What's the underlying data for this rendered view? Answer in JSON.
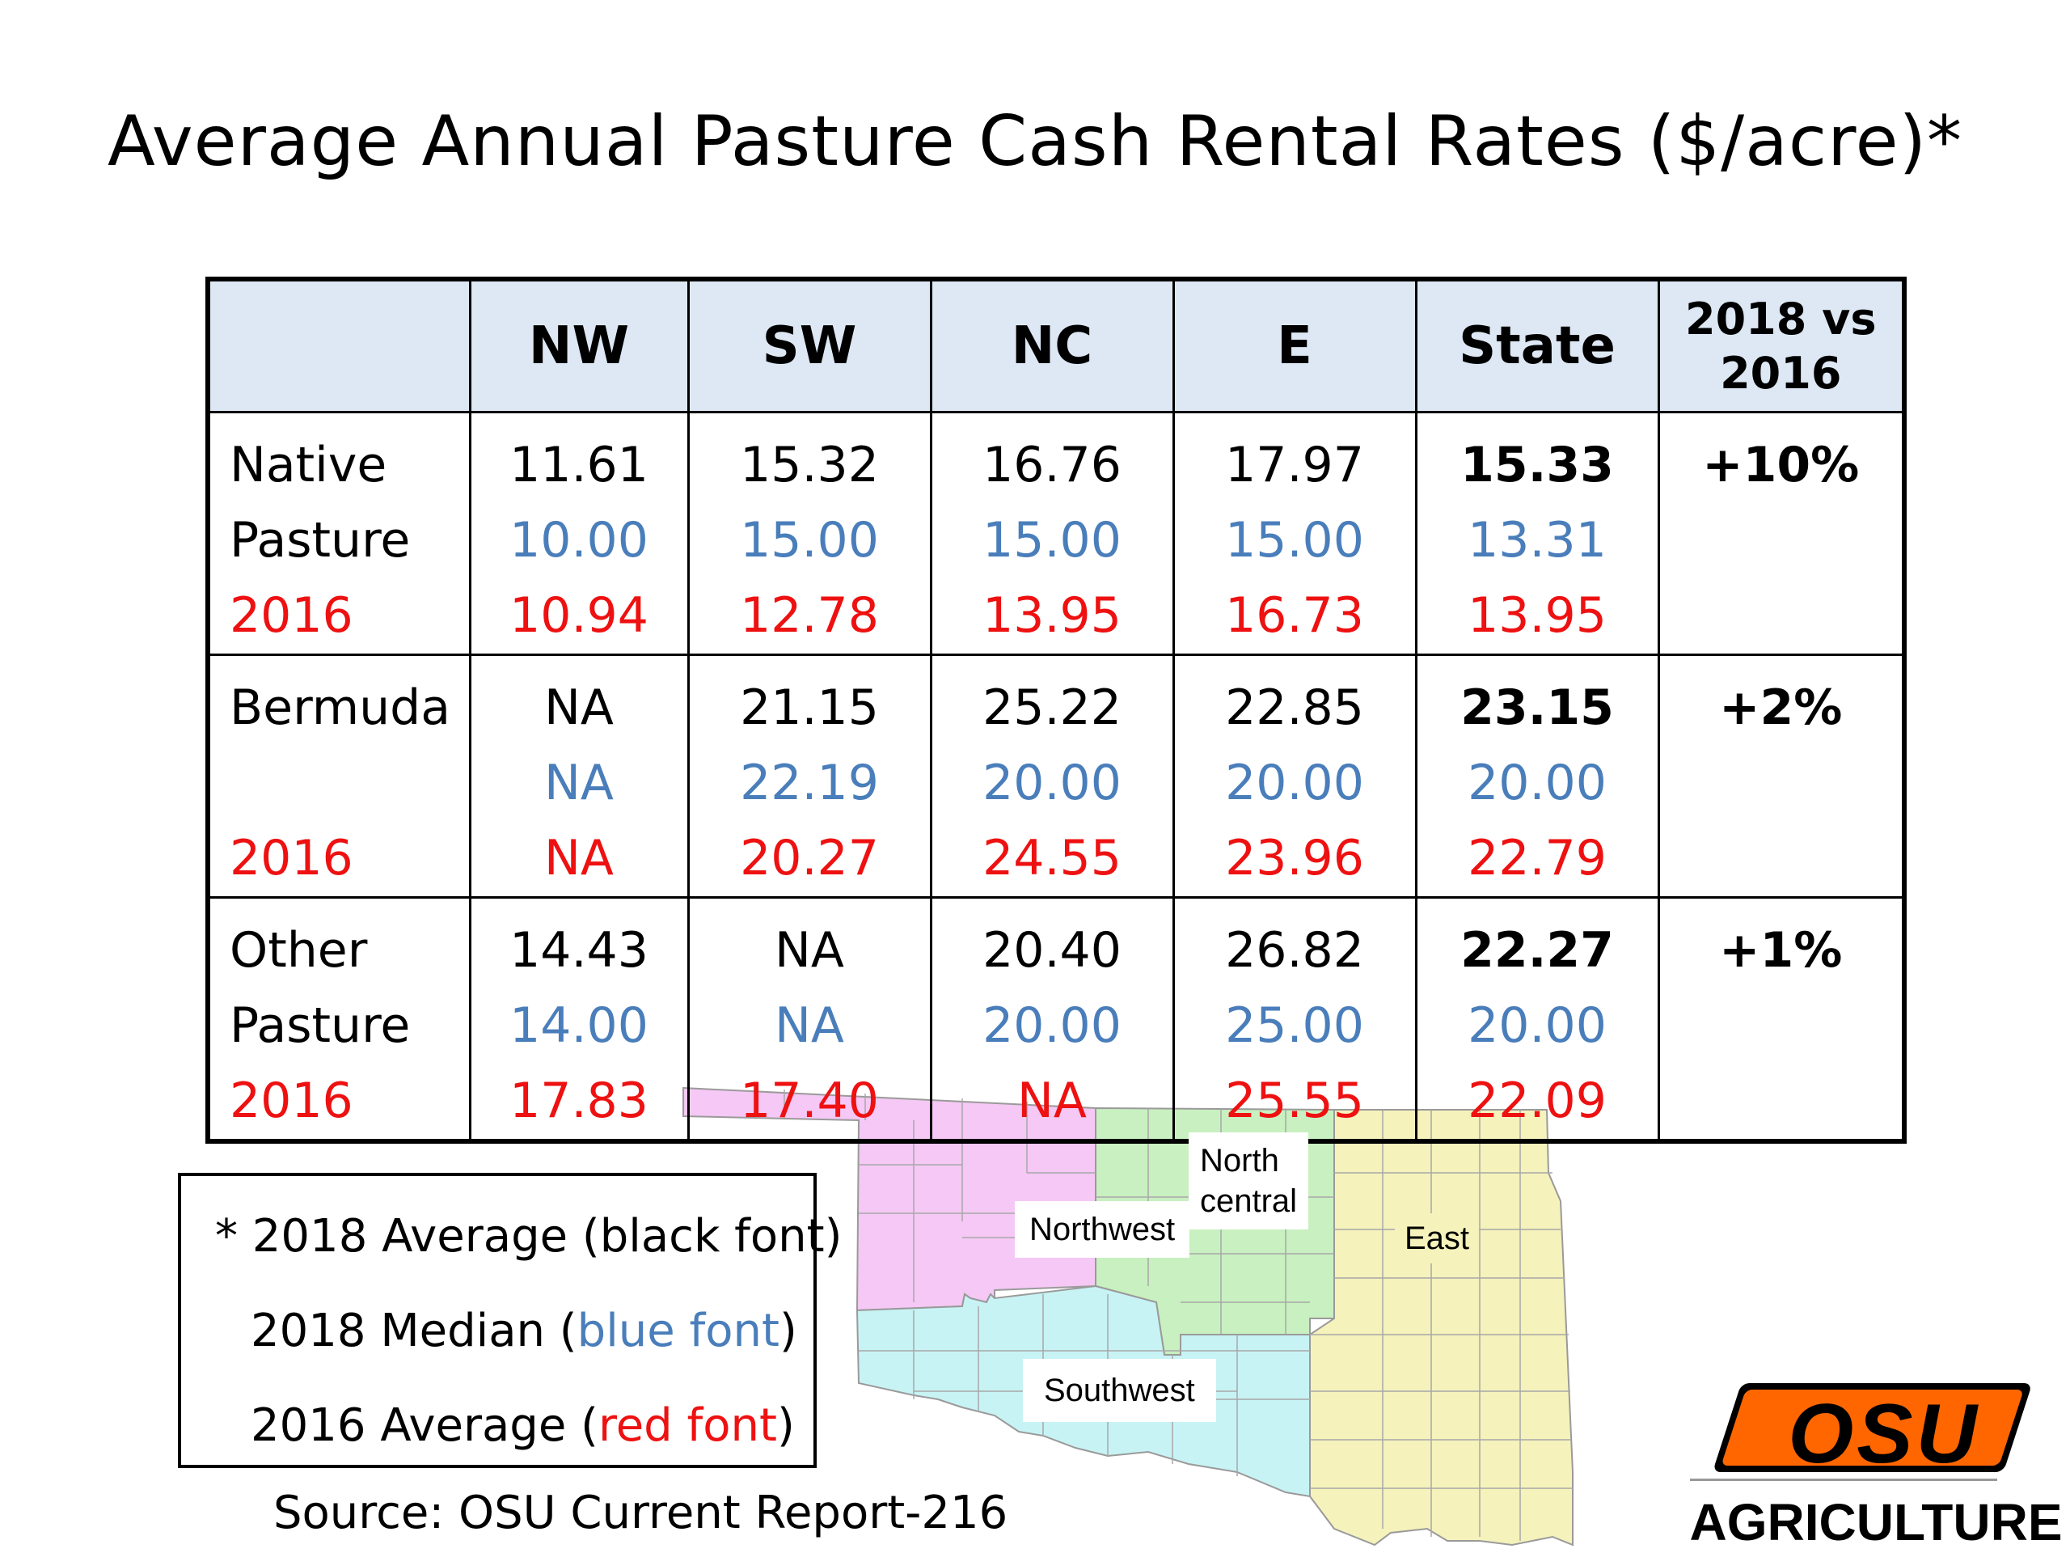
{
  "title": "Average Annual Pasture Cash Rental Rates ($/acre)*",
  "table": {
    "headers": [
      "",
      "NW",
      "SW",
      "NC",
      "E",
      "State",
      "2018 vs 2016"
    ],
    "rows": [
      {
        "label_lines": [
          "Native",
          "Pasture",
          "2016"
        ],
        "avg2018": [
          "11.61",
          "15.32",
          "16.76",
          "17.97",
          "15.33"
        ],
        "median2018": [
          "10.00",
          "15.00",
          "15.00",
          "15.00",
          "13.31"
        ],
        "avg2016": [
          "10.94",
          "12.78",
          "13.95",
          "16.73",
          "13.95"
        ],
        "change": "+10%"
      },
      {
        "label_lines": [
          "Bermuda",
          "",
          "2016"
        ],
        "avg2018": [
          "NA",
          "21.15",
          "25.22",
          "22.85",
          "23.15"
        ],
        "median2018": [
          "NA",
          "22.19",
          "20.00",
          "20.00",
          "20.00"
        ],
        "avg2016": [
          "NA",
          "20.27",
          "24.55",
          "23.96",
          "22.79"
        ],
        "change": "+2%"
      },
      {
        "label_lines": [
          "Other",
          "Pasture",
          "2016"
        ],
        "avg2018": [
          "14.43",
          "NA",
          "20.40",
          "26.82",
          "22.27"
        ],
        "median2018": [
          "14.00",
          "NA",
          "20.00",
          "25.00",
          "20.00"
        ],
        "avg2016": [
          "17.83",
          "17.40",
          "NA",
          "25.55",
          "22.09"
        ],
        "change": "+1%"
      }
    ]
  },
  "legend": {
    "line1": "* 2018 Average (black font)",
    "line2_prefix": "2018 Median (",
    "line2_colored": "blue font",
    "line2_suffix": ")",
    "line3_prefix": "2016 Average (",
    "line3_colored": "red font",
    "line3_suffix": ")"
  },
  "source": "Source:  OSU Current Report-216",
  "map": {
    "regions": {
      "northwest": "Northwest",
      "north_central_1": "North",
      "north_central_2": "central",
      "east": "East",
      "southwest": "Southwest"
    },
    "colors": {
      "northwest": "#f5c8f5",
      "north_central": "#c8f0c0",
      "east": "#f5f2bc",
      "southwest": "#c8f3f5"
    }
  },
  "logo": {
    "text": "OSU",
    "org": "AGRICULTURE",
    "color": "#ff6600"
  },
  "colors": {
    "header_bg": "#dde8f4",
    "blue": "#4a7ebb",
    "red": "#ee1111"
  }
}
